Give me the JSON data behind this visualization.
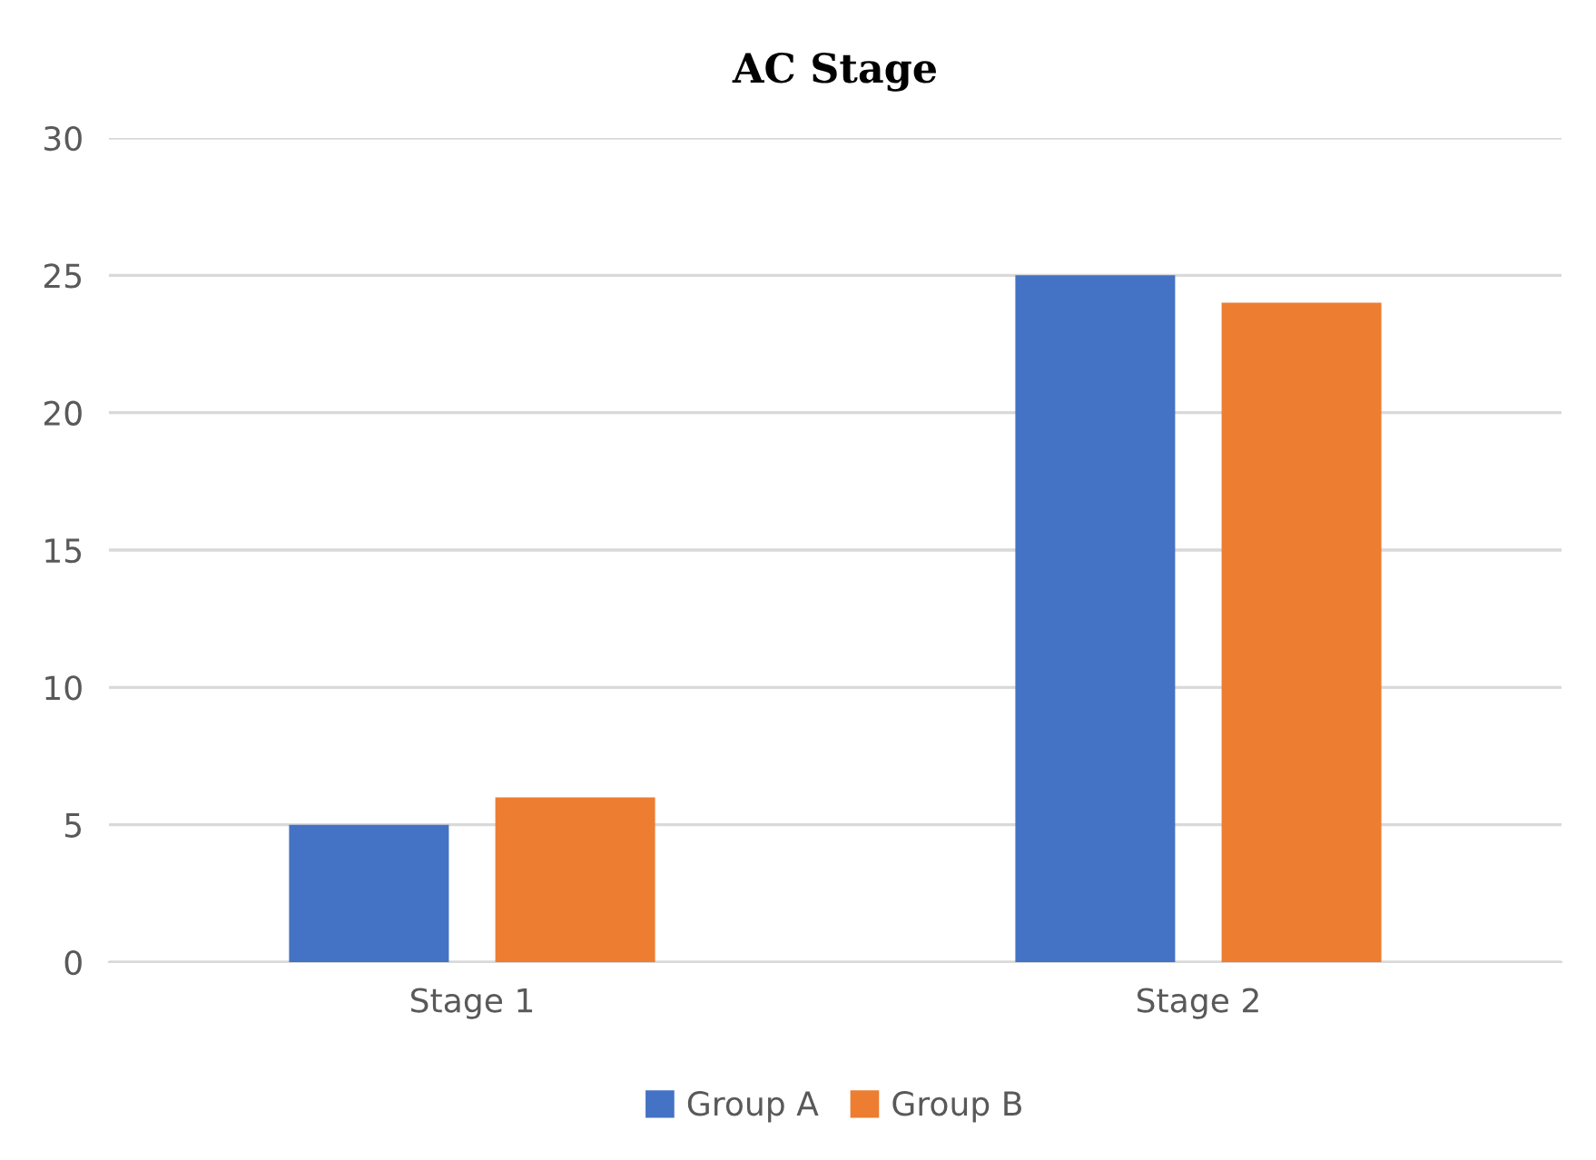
{
  "chart_data": {
    "type": "bar",
    "title": "AC Stage",
    "categories": [
      "Stage 1",
      "Stage 2"
    ],
    "series": [
      {
        "name": "Group A",
        "color": "#4472c4",
        "values": [
          5,
          25
        ]
      },
      {
        "name": "Group B",
        "color": "#ed7d31",
        "values": [
          6,
          24
        ]
      }
    ],
    "ylim": [
      0,
      30
    ],
    "yticks": [
      0,
      5,
      10,
      15,
      20,
      25,
      30
    ],
    "grid": "y",
    "legend": "bottom"
  }
}
